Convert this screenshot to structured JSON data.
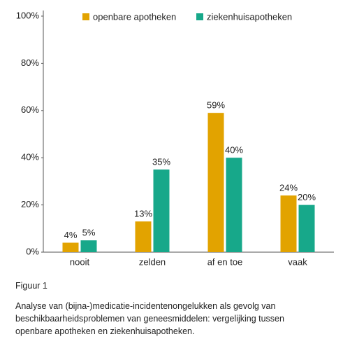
{
  "chart_data": {
    "type": "bar",
    "categories": [
      "nooit",
      "zelden",
      "af en toe",
      "vaak"
    ],
    "series": [
      {
        "name": "openbare apotheken",
        "color": "#e2a300",
        "values": [
          4,
          13,
          59,
          24
        ],
        "value_labels": [
          "4%",
          "13%",
          "59%",
          "24%"
        ]
      },
      {
        "name": "ziekenhuisapotheken",
        "color": "#17a88a",
        "values": [
          5,
          35,
          40,
          20
        ],
        "value_labels": [
          "5%",
          "35%",
          "40%",
          "20%"
        ]
      }
    ],
    "ylim": [
      0,
      100
    ],
    "yticks": [
      {
        "value": 0,
        "label": "0%"
      },
      {
        "value": 20,
        "label": "20%"
      },
      {
        "value": 40,
        "label": "40%"
      },
      {
        "value": 60,
        "label": "60%"
      },
      {
        "value": 80,
        "label": "80%"
      },
      {
        "value": 100,
        "label": "100%"
      }
    ],
    "grid": false,
    "legend": "top"
  },
  "figure_label": "Figuur 1",
  "caption": [
    "Analyse van (bijna-)medicatie-incidentenongelukken als gevolg van",
    "beschikbaarheidsproblemen van geneesmiddelen: vergelijking tussen",
    "openbare apotheken en ziekenhuisapotheken."
  ]
}
